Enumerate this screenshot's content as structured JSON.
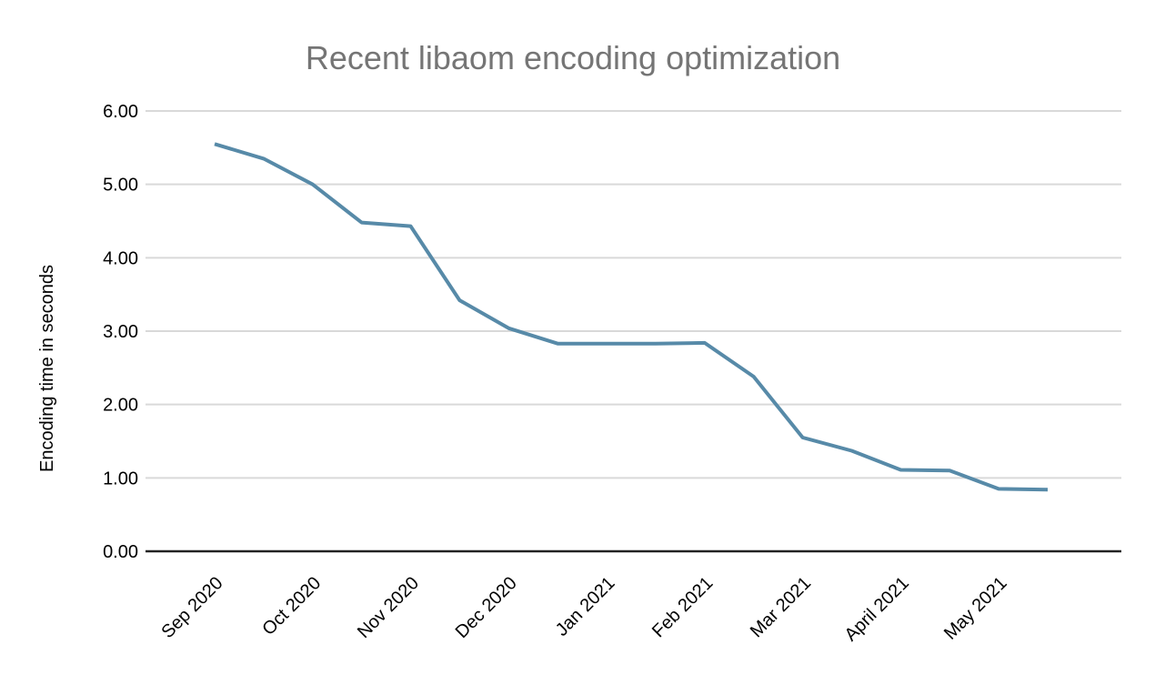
{
  "chart_data": {
    "type": "line",
    "title": "Recent libaom encoding optimization",
    "xlabel": "",
    "ylabel": "Encoding time in seconds",
    "categories": [
      "Sep 2020",
      "Oct 2020",
      "Nov 2020",
      "Dec 2020",
      "Jan 2021",
      "Feb 2021",
      "Mar 2021",
      "April 2021",
      "May 2021"
    ],
    "category_point_indices": [
      0,
      2,
      4,
      6,
      8,
      10,
      12,
      14,
      16
    ],
    "series": [
      {
        "name": "Encoding time",
        "values": [
          5.55,
          5.35,
          5.0,
          4.48,
          4.43,
          3.42,
          3.04,
          2.83,
          2.83,
          2.83,
          2.84,
          2.38,
          1.55,
          1.37,
          1.11,
          1.1,
          0.85,
          0.84
        ]
      }
    ],
    "ylim": [
      0,
      6
    ],
    "ytick_labels": [
      "0.00",
      "1.00",
      "2.00",
      "3.00",
      "4.00",
      "5.00",
      "6.00"
    ],
    "grid": true,
    "legend": "none",
    "colors": {
      "line": "#578aa8",
      "grid": "#d9d9d9",
      "axis": "#222222",
      "title_text": "#757575",
      "tick_text": "#000000",
      "background": "#ffffff"
    }
  }
}
